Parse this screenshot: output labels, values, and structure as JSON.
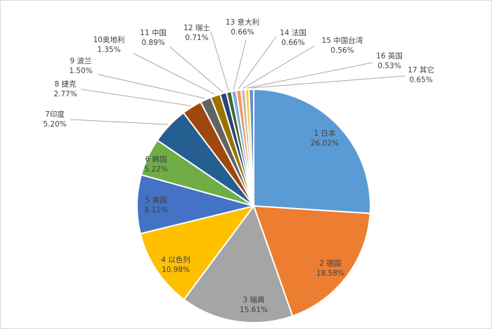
{
  "chart_data": {
    "type": "pie",
    "start_angle": "top, clockwise",
    "categories": [
      "1 日本",
      "2 德国",
      "3 瑞典",
      "4 以色列",
      "5 美国",
      "6 韩国",
      "7印度",
      "8 捷克",
      "9 波兰",
      "10奥地利",
      "11 中国",
      "12 瑞士",
      "13 意大利",
      "14 法国",
      "15 中国台湾",
      "16 英国",
      "17 其它"
    ],
    "values": [
      26.02,
      18.58,
      15.61,
      10.98,
      8.11,
      5.22,
      5.2,
      2.77,
      1.5,
      1.35,
      0.89,
      0.71,
      0.66,
      0.66,
      0.56,
      0.53,
      0.65
    ],
    "value_labels": [
      "26.02%",
      "18.58%",
      "15.61%",
      "10.98%",
      "8.11%",
      "5.22%",
      "5.20%",
      "2.77%",
      "1.50%",
      "1.35%",
      "0.89%",
      "0.71%",
      "0.66%",
      "0.66%",
      "0.56%",
      "0.53%",
      "0.65%"
    ],
    "colors": [
      "#5B9BD5",
      "#ED7D31",
      "#A5A5A5",
      "#FFC000",
      "#4472C4",
      "#70AD47",
      "#255E91",
      "#9E480E",
      "#636363",
      "#997300",
      "#264478",
      "#43682B",
      "#7CAFDD",
      "#F1975A",
      "#B7B7B7",
      "#FFCD33",
      "#698ED0"
    ],
    "legend": "none",
    "data_labels": "category name and percentage"
  }
}
